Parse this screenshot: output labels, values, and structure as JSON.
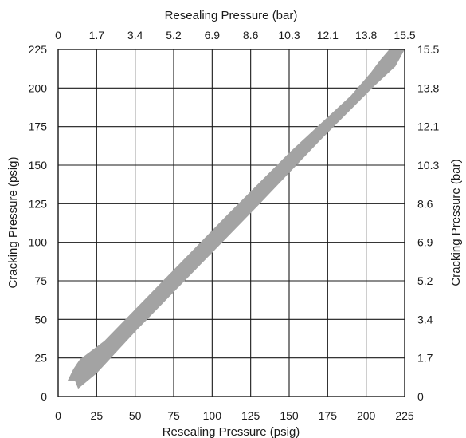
{
  "chart_data": {
    "type": "area",
    "title": "",
    "xlabel_bottom": "Resealing Pressure (psig)",
    "xlabel_top": "Resealing Pressure (bar)",
    "ylabel_left": "Cracking Pressure (psig)",
    "ylabel_right": "Cracking Pressure (bar)",
    "xlim": [
      0,
      225
    ],
    "ylim": [
      0,
      225
    ],
    "grid": true,
    "x_ticks_bottom": [
      "0",
      "25",
      "50",
      "75",
      "100",
      "125",
      "150",
      "175",
      "200",
      "225"
    ],
    "x_ticks_top": [
      "0",
      "1.7",
      "3.4",
      "5.2",
      "6.9",
      "8.6",
      "10.3",
      "12.1",
      "13.8",
      "15.5"
    ],
    "y_ticks_left": [
      "0",
      "25",
      "50",
      "75",
      "100",
      "125",
      "150",
      "175",
      "200",
      "225"
    ],
    "y_ticks_right": [
      "0",
      "1.7",
      "3.4",
      "5.2",
      "6.9",
      "8.6",
      "10.3",
      "12.1",
      "13.8",
      "15.5"
    ],
    "band": {
      "name": "",
      "color": "#a3a3a3",
      "outline": [
        [
          6,
          10
        ],
        [
          8,
          14
        ],
        [
          10,
          18
        ],
        [
          14,
          24
        ],
        [
          30,
          36
        ],
        [
          70,
          77
        ],
        [
          110,
          118
        ],
        [
          150,
          158
        ],
        [
          190,
          195
        ],
        [
          203,
          210
        ],
        [
          209,
          218
        ],
        [
          215,
          225
        ],
        [
          225,
          225
        ],
        [
          219,
          214
        ],
        [
          205,
          201
        ],
        [
          170,
          166
        ],
        [
          130,
          124
        ],
        [
          90,
          83
        ],
        [
          50,
          42
        ],
        [
          25,
          15
        ],
        [
          13,
          5
        ],
        [
          11,
          10
        ]
      ]
    }
  }
}
